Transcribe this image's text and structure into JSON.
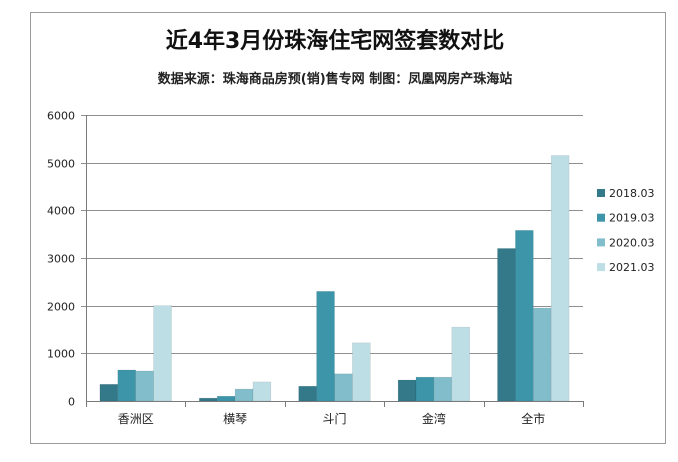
{
  "chart_data": {
    "type": "bar",
    "title": "近4年3月份珠海住宅网签套数对比",
    "subtitle": "数据来源：珠海商品房预(销)售专网 制图：凤凰网房产珠海站",
    "categories": [
      "香洲区",
      "横琴",
      "斗门",
      "金湾",
      "全市"
    ],
    "series": [
      {
        "name": "2018.03",
        "color": "#33798a",
        "values": [
          350,
          60,
          310,
          440,
          3200
        ]
      },
      {
        "name": "2019.03",
        "color": "#3c95a9",
        "values": [
          650,
          100,
          2300,
          500,
          3580
        ]
      },
      {
        "name": "2020.03",
        "color": "#82bdcb",
        "values": [
          630,
          250,
          570,
          500,
          1950
        ]
      },
      {
        "name": "2021.03",
        "color": "#bedee6",
        "values": [
          2000,
          400,
          1220,
          1550,
          5150
        ]
      }
    ],
    "ylim": [
      0,
      6000
    ],
    "yticks": [
      0,
      1000,
      2000,
      3000,
      4000,
      5000,
      6000
    ],
    "grid": true,
    "legend": "right"
  }
}
